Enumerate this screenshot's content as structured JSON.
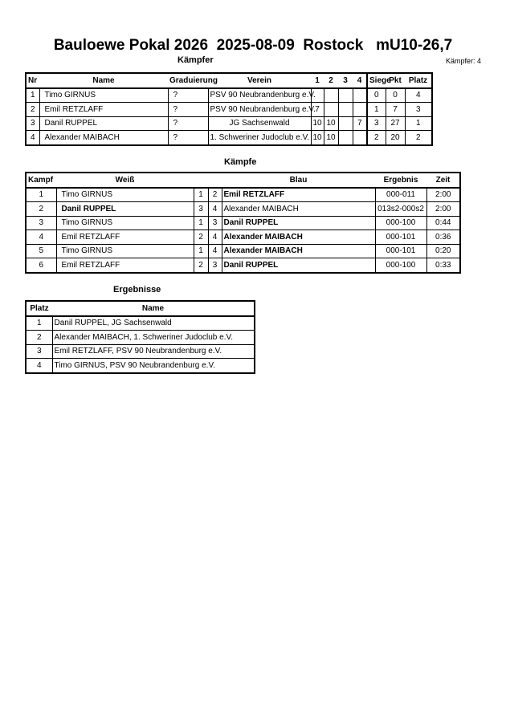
{
  "title": "Bauloewe Pokal 2026  2025-08-09  Rostock   mU10-26,7",
  "fighters": {
    "heading": "Kämpfer",
    "count_label": "Kämpfer: 4",
    "headers": [
      "Nr",
      "Name",
      "Graduierung",
      "Verein",
      "1",
      "2",
      "3",
      "4",
      "Siege",
      "Pkt",
      "Platz"
    ],
    "rows": [
      [
        "1",
        "Timo GIRNUS",
        "?",
        "PSV 90 Neubrandenburg e.V.",
        "",
        "",
        "",
        "",
        "0",
        "0",
        "4"
      ],
      [
        "2",
        "Emil RETZLAFF",
        "?",
        "PSV 90 Neubrandenburg e.V.",
        "7",
        "",
        "",
        "",
        "1",
        "7",
        "3"
      ],
      [
        "3",
        "Danil RUPPEL",
        "?",
        "JG Sachsenwald",
        "10",
        "10",
        "",
        "7",
        "3",
        "27",
        "1"
      ],
      [
        "4",
        "Alexander MAIBACH",
        "?",
        "1. Schweriner Judoclub e.V.",
        "10",
        "10",
        "",
        "",
        "2",
        "20",
        "2"
      ]
    ]
  },
  "fights": {
    "heading": "Kämpfe",
    "headers": [
      "Kampf",
      "Weiß",
      "",
      "",
      "Blau",
      "Ergebnis",
      "Zeit"
    ],
    "rows": [
      {
        "nr": "1",
        "white": "Timo GIRNUS",
        "w": "1",
        "b": "2",
        "blue": "Emil RETZLAFF",
        "result": "000-011",
        "time": "2:00",
        "winner": "blue"
      },
      {
        "nr": "2",
        "white": "Danil RUPPEL",
        "w": "3",
        "b": "4",
        "blue": "Alexander MAIBACH",
        "result": "013s2-000s2",
        "time": "2:00",
        "winner": "white"
      },
      {
        "nr": "3",
        "white": "Timo GIRNUS",
        "w": "1",
        "b": "3",
        "blue": "Danil RUPPEL",
        "result": "000-100",
        "time": "0:44",
        "winner": "blue"
      },
      {
        "nr": "4",
        "white": "Emil RETZLAFF",
        "w": "2",
        "b": "4",
        "blue": "Alexander MAIBACH",
        "result": "000-101",
        "time": "0:36",
        "winner": "blue"
      },
      {
        "nr": "5",
        "white": "Timo GIRNUS",
        "w": "1",
        "b": "4",
        "blue": "Alexander MAIBACH",
        "result": "000-101",
        "time": "0:20",
        "winner": "blue"
      },
      {
        "nr": "6",
        "white": "Emil RETZLAFF",
        "w": "2",
        "b": "3",
        "blue": "Danil RUPPEL",
        "result": "000-100",
        "time": "0:33",
        "winner": "blue"
      }
    ]
  },
  "results": {
    "heading": "Ergebnisse",
    "headers": [
      "Platz",
      "Name"
    ],
    "rows": [
      [
        "1",
        "Danil RUPPEL, JG Sachsenwald"
      ],
      [
        "2",
        "Alexander MAIBACH, 1. Schweriner Judoclub e.V."
      ],
      [
        "3",
        "Emil RETZLAFF, PSV 90 Neubrandenburg e.V."
      ],
      [
        "4",
        "Timo GIRNUS, PSV 90 Neubrandenburg e.V."
      ]
    ]
  }
}
